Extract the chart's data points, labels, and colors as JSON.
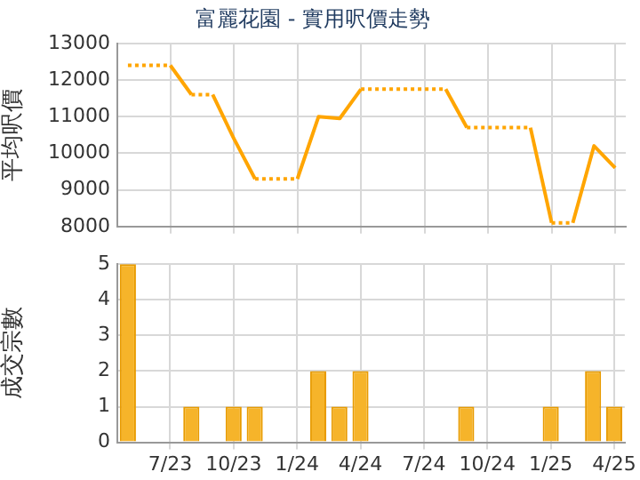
{
  "chart_data": [
    {
      "type": "line",
      "title": "富麗花園 - 實用呎價走勢",
      "ylabel": "平均呎價",
      "categories": [
        null,
        null,
        null,
        null,
        null,
        null,
        null,
        null,
        null,
        null,
        null,
        null,
        null,
        null,
        null,
        null,
        null,
        null,
        null,
        null,
        null,
        null,
        null,
        null
      ],
      "series": [
        {
          "color": "#ffa500",
          "values": [
            12400,
            12400,
            12400,
            11600,
            11600,
            10400,
            9300,
            9300,
            9300,
            11000,
            10950,
            11750,
            11750,
            11750,
            11750,
            11750,
            10700,
            10700,
            10700,
            10700,
            8100,
            8100,
            10200,
            9600
          ]
        }
      ],
      "ylim": [
        8000,
        13000
      ],
      "yticks": [
        8000,
        9000,
        10000,
        11000,
        12000,
        13000
      ],
      "grid": true,
      "tick_labels": "y"
    },
    {
      "type": "bar",
      "ylabel": "成交宗數",
      "categories": [
        null,
        null,
        "7/23",
        null,
        null,
        "10/23",
        null,
        null,
        "1/24",
        null,
        null,
        "4/24",
        null,
        null,
        "7/24",
        null,
        null,
        "10/24",
        null,
        null,
        "1/25",
        null,
        null,
        "4/25"
      ],
      "series": [
        {
          "color": "#f6b42a",
          "values": [
            5,
            0,
            0,
            1,
            0,
            1,
            1,
            0,
            0,
            2,
            1,
            2,
            0,
            0,
            0,
            0,
            1,
            0,
            0,
            0,
            1,
            0,
            2,
            1
          ]
        }
      ],
      "ylim": [
        0,
        5
      ],
      "yticks": [
        0,
        1,
        2,
        3,
        4,
        5
      ],
      "grid": true
    }
  ]
}
